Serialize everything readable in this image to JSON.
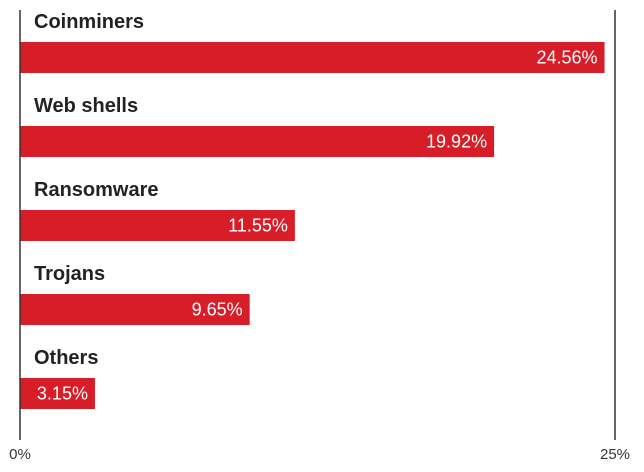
{
  "chart_data": {
    "type": "bar",
    "orientation": "horizontal",
    "categories": [
      "Coinminers",
      "Web shells",
      "Ransomware",
      "Trojans",
      "Others"
    ],
    "values": [
      24.56,
      19.92,
      11.55,
      9.65,
      3.15
    ],
    "value_labels": [
      "24.56%",
      "19.92%",
      "11.55%",
      "9.65%",
      "3.15%"
    ],
    "xlim": [
      0,
      25
    ],
    "x_ticks": [
      "0%",
      "25%"
    ],
    "grid": false,
    "legend": "none",
    "title": "",
    "xlabel": "",
    "ylabel": "",
    "colors": {
      "bar": "#d71e28",
      "axis": "#333333",
      "category_text": "#222222",
      "value_text": "#ffffff"
    }
  }
}
